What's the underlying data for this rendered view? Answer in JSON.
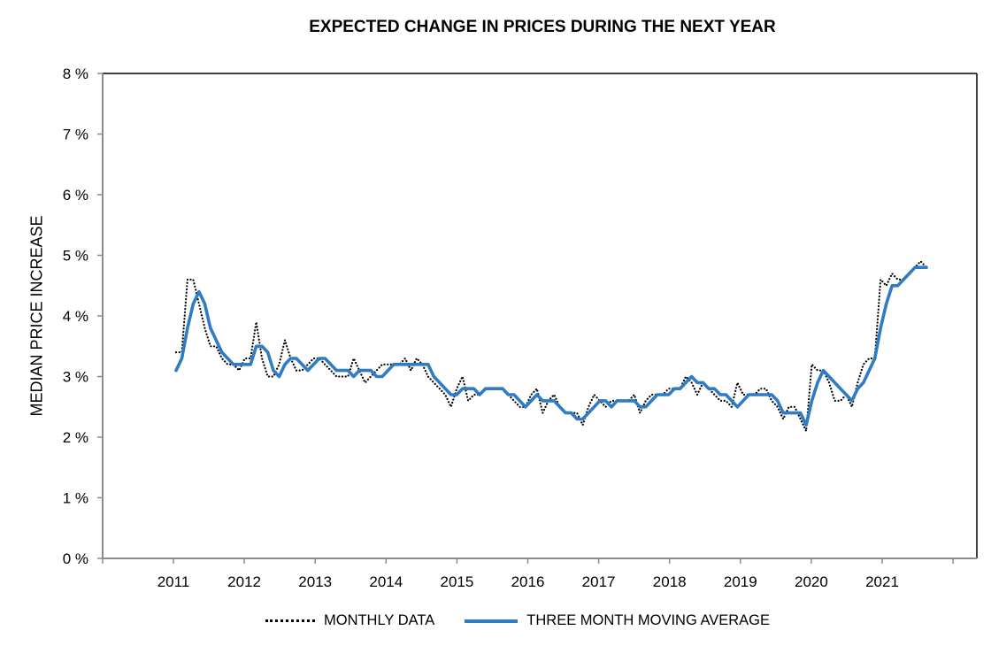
{
  "chart_data": {
    "type": "line",
    "title": "EXPECTED CHANGE IN PRICES DURING THE NEXT YEAR",
    "xlabel": "",
    "ylabel": "MEDIAN PRICE INCREASE",
    "ylim": [
      0,
      8
    ],
    "yticks": [
      0,
      1,
      2,
      3,
      4,
      5,
      6,
      7,
      8
    ],
    "ytick_labels": [
      "0 %",
      "1 %",
      "2 %",
      "3 %",
      "4 %",
      "5 %",
      "6 %",
      "7 %",
      "8 %"
    ],
    "xlim": [
      2010,
      2022
    ],
    "xticks": [
      2011,
      2012,
      2013,
      2014,
      2015,
      2016,
      2017,
      2018,
      2019,
      2020,
      2021
    ],
    "xtick_labels": [
      "2011",
      "2012",
      "2013",
      "2014",
      "2015",
      "2016",
      "2017",
      "2018",
      "2019",
      "2020",
      "2021"
    ],
    "grid": false,
    "legend_position": "bottom",
    "x_start": "2011-01",
    "x_frequency": "monthly",
    "series": [
      {
        "name": "MONTHLY DATA",
        "style": "dotted",
        "color": "#000000",
        "values": [
          3.4,
          3.4,
          4.6,
          4.6,
          4.2,
          3.8,
          3.5,
          3.5,
          3.3,
          3.2,
          3.2,
          3.1,
          3.3,
          3.3,
          3.9,
          3.3,
          3.0,
          3.0,
          3.2,
          3.6,
          3.3,
          3.1,
          3.1,
          3.2,
          3.3,
          3.3,
          3.2,
          3.1,
          3.0,
          3.0,
          3.0,
          3.3,
          3.1,
          2.9,
          3.0,
          3.1,
          3.2,
          3.2,
          3.2,
          3.2,
          3.3,
          3.1,
          3.3,
          3.2,
          3.0,
          2.9,
          2.8,
          2.7,
          2.5,
          2.8,
          3.0,
          2.6,
          2.7,
          2.7,
          2.8,
          2.8,
          2.8,
          2.8,
          2.7,
          2.6,
          2.5,
          2.5,
          2.7,
          2.8,
          2.4,
          2.6,
          2.7,
          2.5,
          2.4,
          2.4,
          2.4,
          2.2,
          2.5,
          2.7,
          2.6,
          2.5,
          2.6,
          2.6,
          2.6,
          2.6,
          2.7,
          2.4,
          2.6,
          2.7,
          2.7,
          2.7,
          2.8,
          2.8,
          2.8,
          3.0,
          2.9,
          2.7,
          2.9,
          2.8,
          2.7,
          2.6,
          2.6,
          2.5,
          2.9,
          2.7,
          2.7,
          2.7,
          2.8,
          2.8,
          2.6,
          2.5,
          2.3,
          2.5,
          2.5,
          2.3,
          2.1,
          3.2,
          3.1,
          3.1,
          2.9,
          2.6,
          2.6,
          2.7,
          2.5,
          2.9,
          3.2,
          3.3,
          3.3,
          4.6,
          4.5,
          4.7,
          4.6,
          4.6,
          4.7,
          4.8,
          4.9,
          4.8
        ]
      },
      {
        "name": "THREE MONTH MOVING AVERAGE",
        "style": "solid",
        "color": "#2f7bc4",
        "values": [
          3.1,
          3.3,
          3.8,
          4.2,
          4.4,
          4.2,
          3.8,
          3.6,
          3.4,
          3.3,
          3.2,
          3.2,
          3.2,
          3.2,
          3.5,
          3.5,
          3.4,
          3.1,
          3.0,
          3.2,
          3.3,
          3.3,
          3.2,
          3.1,
          3.2,
          3.3,
          3.3,
          3.2,
          3.1,
          3.1,
          3.1,
          3.0,
          3.1,
          3.1,
          3.1,
          3.0,
          3.0,
          3.1,
          3.2,
          3.2,
          3.2,
          3.2,
          3.2,
          3.2,
          3.2,
          3.0,
          2.9,
          2.8,
          2.7,
          2.7,
          2.8,
          2.8,
          2.8,
          2.7,
          2.8,
          2.8,
          2.8,
          2.8,
          2.7,
          2.7,
          2.6,
          2.5,
          2.6,
          2.7,
          2.6,
          2.6,
          2.6,
          2.5,
          2.4,
          2.4,
          2.3,
          2.3,
          2.4,
          2.5,
          2.6,
          2.6,
          2.5,
          2.6,
          2.6,
          2.6,
          2.6,
          2.5,
          2.5,
          2.6,
          2.7,
          2.7,
          2.7,
          2.8,
          2.8,
          2.9,
          3.0,
          2.9,
          2.9,
          2.8,
          2.8,
          2.7,
          2.7,
          2.6,
          2.5,
          2.6,
          2.7,
          2.7,
          2.7,
          2.7,
          2.7,
          2.6,
          2.4,
          2.4,
          2.4,
          2.4,
          2.2,
          2.6,
          2.9,
          3.1,
          3.0,
          2.9,
          2.8,
          2.7,
          2.6,
          2.8,
          2.9,
          3.1,
          3.3,
          3.8,
          4.2,
          4.5,
          4.5,
          4.6,
          4.7,
          4.8,
          4.8,
          4.8
        ]
      }
    ]
  },
  "legend": {
    "items": [
      "MONTHLY DATA",
      "THREE MONTH MOVING AVERAGE"
    ]
  }
}
